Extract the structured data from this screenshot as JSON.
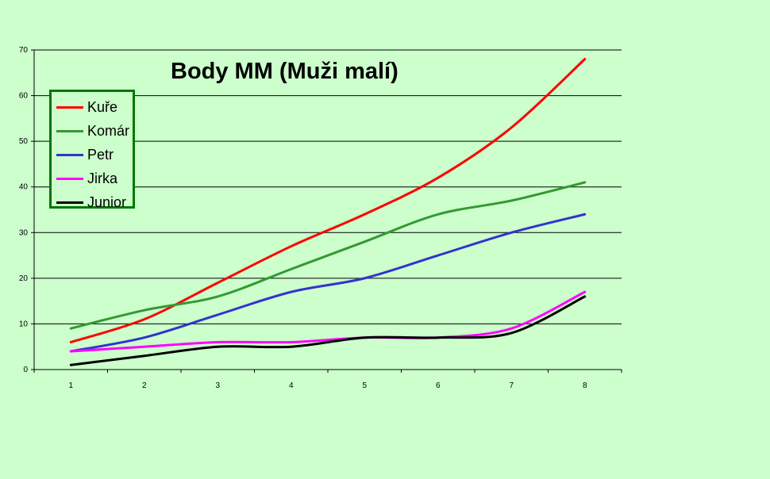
{
  "chart_data": {
    "type": "line",
    "title": "Body MM (Muži malí)",
    "xlabel": "",
    "ylabel": "",
    "x": [
      1,
      2,
      3,
      4,
      5,
      6,
      7,
      8
    ],
    "ylim": [
      0,
      70
    ],
    "yticks": [
      0,
      10,
      20,
      30,
      40,
      50,
      60,
      70
    ],
    "grid": true,
    "legend_position": "top-left",
    "series": [
      {
        "name": "Kuře",
        "color": "#ff0000",
        "values": [
          6,
          11,
          19,
          27,
          34,
          42,
          53,
          68
        ]
      },
      {
        "name": "Komár",
        "color": "#339933",
        "values": [
          9,
          13,
          16,
          22,
          28,
          34,
          37,
          41
        ]
      },
      {
        "name": "Petr",
        "color": "#3333cc",
        "values": [
          4,
          7,
          12,
          17,
          20,
          25,
          30,
          34
        ]
      },
      {
        "name": "Jirka",
        "color": "#ff00ff",
        "values": [
          4,
          5,
          6,
          6,
          7,
          7,
          9,
          17
        ]
      },
      {
        "name": "Junior",
        "color": "#000000",
        "values": [
          1,
          3,
          5,
          5,
          7,
          7,
          8,
          16
        ]
      }
    ]
  }
}
